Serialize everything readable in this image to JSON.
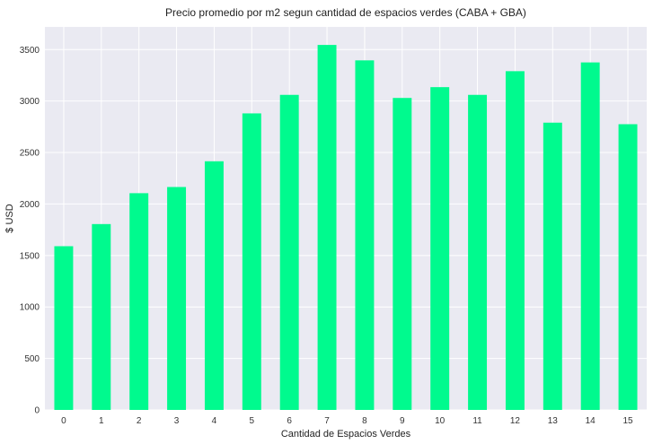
{
  "chart_data": {
    "type": "bar",
    "title": "Precio promedio por m2 segun cantidad de espacios verdes (CABA + GBA)",
    "xlabel": "Cantidad de Espacios Verdes",
    "ylabel": "$ USD",
    "categories": [
      "0",
      "1",
      "2",
      "3",
      "4",
      "5",
      "6",
      "7",
      "8",
      "9",
      "10",
      "11",
      "12",
      "13",
      "14",
      "15"
    ],
    "values": [
      1590,
      1805,
      2105,
      2165,
      2415,
      2880,
      3060,
      3545,
      3395,
      3030,
      3135,
      3060,
      3290,
      2790,
      3375,
      2775
    ],
    "ylim": [
      0,
      3720
    ],
    "yticks": [
      0,
      500,
      1000,
      1500,
      2000,
      2500,
      3000,
      3500
    ],
    "grid": true,
    "bar_color": "#00fa8e",
    "background_color": "#eaeaf2",
    "grid_color": "#ffffff"
  }
}
